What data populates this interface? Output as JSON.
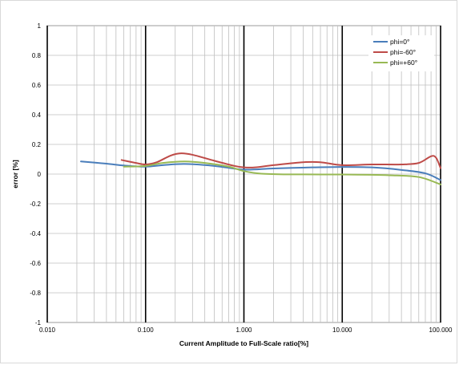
{
  "chart_data": {
    "type": "line",
    "title": "",
    "xlabel": "Current Amplitude to Full-Scale ratio[%]",
    "ylabel": "error [%]",
    "x_scale": "log",
    "xlim": [
      0.01,
      100
    ],
    "ylim": [
      -1,
      1
    ],
    "x_ticks": [
      0.01,
      0.1,
      1,
      10,
      100
    ],
    "x_tick_labels": [
      "0.010",
      "0.100",
      "1.000",
      "10.000",
      "100.000"
    ],
    "y_ticks": [
      -1,
      -0.8,
      -0.6,
      -0.4,
      -0.2,
      0,
      0.2,
      0.4,
      0.6,
      0.8,
      1
    ],
    "y_tick_labels": [
      "-1",
      "-0.8",
      "-0.6",
      "-0.4",
      "-0.2",
      "0",
      "0.2",
      "0.4",
      "0.6",
      "0.8",
      "1"
    ],
    "grid": true,
    "legend_position": "top-right",
    "series": [
      {
        "name": "phi=0°",
        "color": "#4a7ebb",
        "x": [
          0.022,
          0.04,
          0.06,
          0.1,
          0.15,
          0.25,
          0.5,
          1.0,
          2.0,
          5.0,
          10.0,
          20.0,
          40.0,
          70.0,
          100.0
        ],
        "y": [
          0.085,
          0.07,
          0.058,
          0.05,
          0.06,
          0.068,
          0.055,
          0.03,
          0.038,
          0.045,
          0.048,
          0.045,
          0.028,
          0.005,
          -0.04
        ]
      },
      {
        "name": "phi=-60°",
        "color": "#be4b48",
        "x": [
          0.057,
          0.08,
          0.1,
          0.13,
          0.18,
          0.23,
          0.3,
          0.5,
          0.8,
          1.0,
          1.3,
          2.0,
          4.0,
          6.0,
          10.0,
          20.0,
          40.0,
          60.0,
          80.0,
          90.0,
          100.0
        ],
        "y": [
          0.095,
          0.075,
          0.065,
          0.08,
          0.125,
          0.14,
          0.13,
          0.09,
          0.055,
          0.045,
          0.045,
          0.06,
          0.08,
          0.08,
          0.06,
          0.065,
          0.065,
          0.075,
          0.12,
          0.11,
          0.04
        ]
      },
      {
        "name": "phi=+60°",
        "color": "#98b954",
        "x": [
          0.06,
          0.1,
          0.15,
          0.25,
          0.4,
          0.7,
          1.0,
          1.5,
          3.0,
          10.0,
          30.0,
          60.0,
          100.0
        ],
        "y": [
          0.05,
          0.055,
          0.075,
          0.085,
          0.075,
          0.05,
          0.02,
          0.003,
          -0.002,
          -0.003,
          -0.008,
          -0.02,
          -0.07
        ]
      }
    ]
  }
}
